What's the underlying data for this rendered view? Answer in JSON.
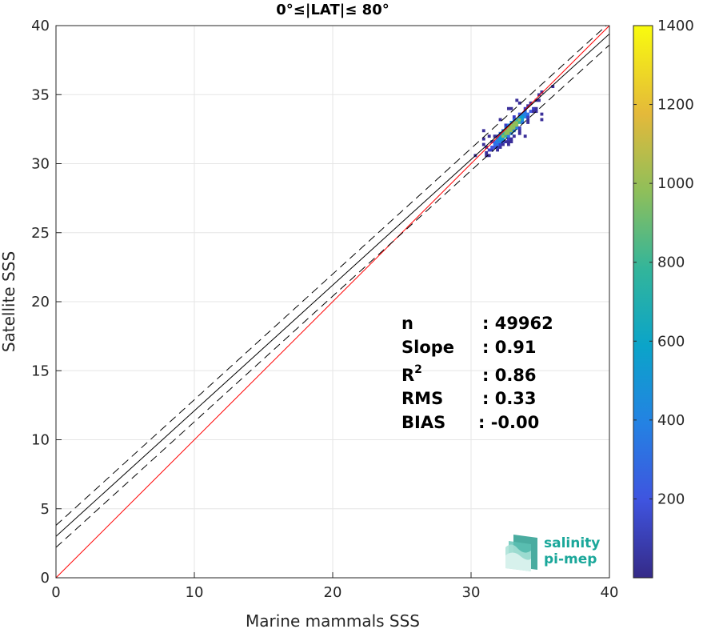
{
  "chart_data": {
    "type": "heatmap",
    "title": "0°≤|LAT|≤ 80°",
    "xlabel": "Marine mammals SSS",
    "ylabel": "Satellite SSS",
    "xlim": [
      0,
      40
    ],
    "ylim": [
      0,
      40
    ],
    "xticks": [
      "0",
      "10",
      "20",
      "30",
      "40"
    ],
    "yticks": [
      "0",
      "5",
      "10",
      "15",
      "20",
      "25",
      "30",
      "35",
      "40"
    ],
    "grid": true,
    "colorbar": {
      "range": [
        0,
        1400
      ],
      "ticks": [
        "200",
        "400",
        "600",
        "800",
        "1000",
        "1200",
        "1400"
      ],
      "colormap": "parula"
    },
    "lines": [
      {
        "name": "identity",
        "slope": 1.0,
        "intercept": 0.0,
        "style": "solid",
        "color": "#ff0000"
      },
      {
        "name": "fit",
        "slope": 0.91,
        "intercept": 3.0,
        "style": "solid",
        "color": "#000000"
      },
      {
        "name": "fit-upper",
        "slope": 0.91,
        "intercept": 3.8,
        "style": "dashed",
        "color": "#000000"
      },
      {
        "name": "fit-lower",
        "slope": 0.91,
        "intercept": 2.2,
        "style": "dashed",
        "color": "#000000"
      }
    ],
    "density_cluster": {
      "x_range": [
        30.2,
        36.9
      ],
      "y_range": [
        30.5,
        35.7
      ],
      "peak": [
        32.8,
        32.5
      ]
    }
  },
  "stats": {
    "n_label": "n",
    "n_value": ": 49962",
    "slope_label": "Slope",
    "slope_value": ": 0.91",
    "r2_label": "R",
    "r2_sup": "2",
    "r2_value": ": 0.86",
    "rms_label": "RMS",
    "rms_value": ": 0.33",
    "bias_label": "BIAS",
    "bias_value": ": -0.00"
  },
  "logo": {
    "line1": "salinity",
    "line2": "pi-mep",
    "color": "#1aa79a"
  }
}
